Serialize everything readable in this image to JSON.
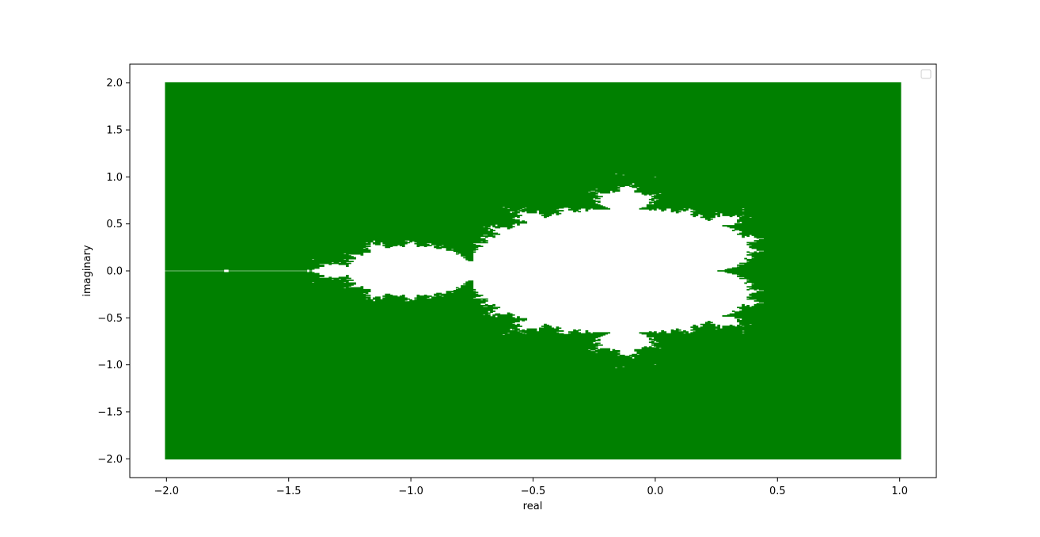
{
  "chart_data": {
    "type": "scatter",
    "title": "",
    "xlabel": "real",
    "ylabel": "imaginary",
    "xlim": [
      -2.15,
      1.15
    ],
    "ylim": [
      -2.2,
      2.2
    ],
    "x_ticks": [
      -2.0,
      -1.5,
      -1.0,
      -0.5,
      0.0,
      0.5,
      1.0
    ],
    "y_ticks": [
      -2.0,
      -1.5,
      -1.0,
      -0.5,
      0.0,
      0.5,
      1.0,
      1.5,
      2.0
    ],
    "x_tick_labels": [
      "−2.0",
      "−1.5",
      "−1.0",
      "−0.5",
      "0.0",
      "0.5",
      "1.0"
    ],
    "y_tick_labels": [
      "−2.0",
      "−1.5",
      "−1.0",
      "−0.5",
      "0.0",
      "0.5",
      "1.0",
      "1.5",
      "2.0"
    ],
    "grid": false,
    "legend": {
      "placement": "upper right",
      "entries": []
    },
    "series": [
      {
        "description_of_points": "complex grid points c that escape under z -> z^2 + c",
        "color": "#008000",
        "x_range": [
          -2.0,
          1.0
        ],
        "y_range": [
          -2.0,
          2.0
        ],
        "grid_resolution": [
          301,
          401
        ],
        "max_iterations": 30,
        "escape_radius": 2.0
      }
    ],
    "excluded_region_color": "#ffffff"
  }
}
